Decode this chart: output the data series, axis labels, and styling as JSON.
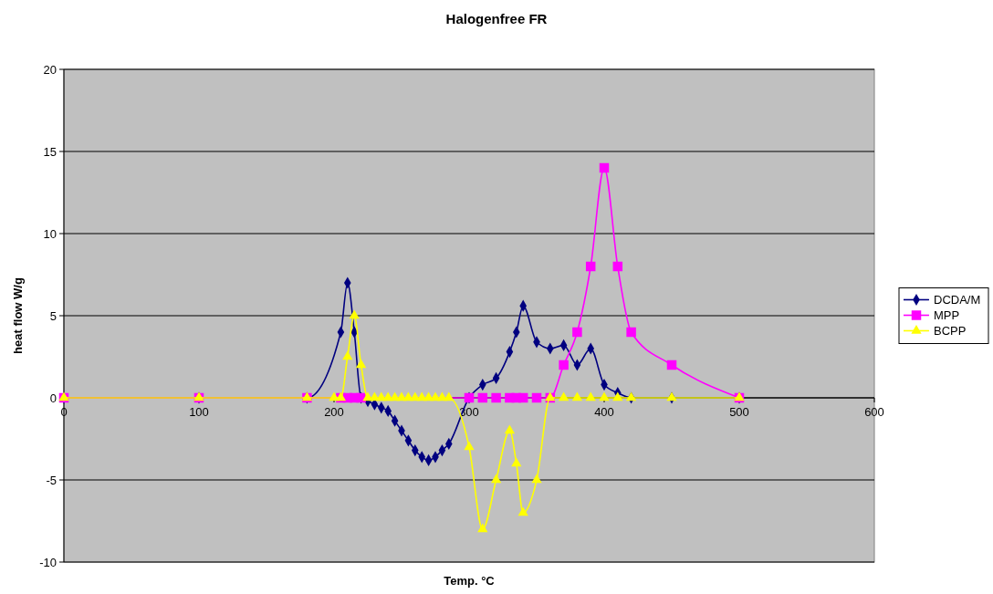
{
  "chart_data": {
    "type": "line",
    "title": "Halogenfree FR",
    "xlabel": "Temp. °C",
    "ylabel": "heat flow W/g",
    "xlim": [
      0,
      600
    ],
    "xticks": [
      0,
      100,
      200,
      300,
      400,
      500,
      600
    ],
    "ylim": [
      -10,
      20
    ],
    "yticks": [
      -10,
      -5,
      0,
      5,
      10,
      15,
      20
    ],
    "grid": "y",
    "legend": "right",
    "series": [
      {
        "name": "DCDA/M",
        "color": "#000080",
        "marker": "diamond",
        "x": [
          0,
          100,
          180,
          200,
          205,
          210,
          215,
          220,
          225,
          230,
          235,
          240,
          245,
          250,
          255,
          260,
          265,
          270,
          275,
          280,
          285,
          300,
          310,
          320,
          330,
          335,
          340,
          350,
          360,
          370,
          380,
          390,
          400,
          410,
          420,
          450,
          500
        ],
        "values": [
          0,
          0,
          0,
          null,
          4,
          7,
          4,
          0,
          -0.2,
          -0.4,
          -0.6,
          -0.8,
          -1.4,
          -2,
          -2.6,
          -3.2,
          -3.6,
          -3.8,
          -3.6,
          -3.2,
          -2.8,
          0,
          0.8,
          1.2,
          2.8,
          4,
          5.6,
          3.4,
          3,
          3.2,
          2,
          3,
          0.8,
          0.3,
          0,
          0,
          0
        ]
      },
      {
        "name": "MPP",
        "color": "#ff00ff",
        "marker": "square",
        "x": [
          0,
          100,
          180,
          205,
          210,
          215,
          220,
          300,
          310,
          320,
          330,
          335,
          340,
          350,
          360,
          370,
          380,
          390,
          400,
          410,
          420,
          450,
          500
        ],
        "values": [
          0,
          0,
          0,
          0,
          0,
          0,
          0,
          0,
          0,
          0,
          0,
          0,
          0,
          0,
          0,
          2,
          4,
          8,
          14,
          8,
          4,
          2,
          0
        ]
      },
      {
        "name": "BCPP",
        "color": "#ffff00",
        "marker": "triangle",
        "x": [
          0,
          100,
          180,
          200,
          205,
          210,
          215,
          220,
          225,
          230,
          235,
          240,
          245,
          250,
          255,
          260,
          265,
          270,
          275,
          280,
          285,
          300,
          310,
          320,
          330,
          335,
          340,
          350,
          360,
          370,
          380,
          390,
          400,
          410,
          420,
          450,
          500
        ],
        "values": [
          0,
          0,
          0,
          0,
          0,
          2.5,
          5,
          2,
          0,
          0,
          0,
          0,
          0,
          0,
          0,
          0,
          0,
          0,
          0,
          0,
          0,
          -3,
          -8,
          -5,
          -2,
          -4,
          -7,
          -5,
          0,
          0,
          0,
          0,
          0,
          0,
          0,
          0,
          0
        ]
      }
    ]
  }
}
